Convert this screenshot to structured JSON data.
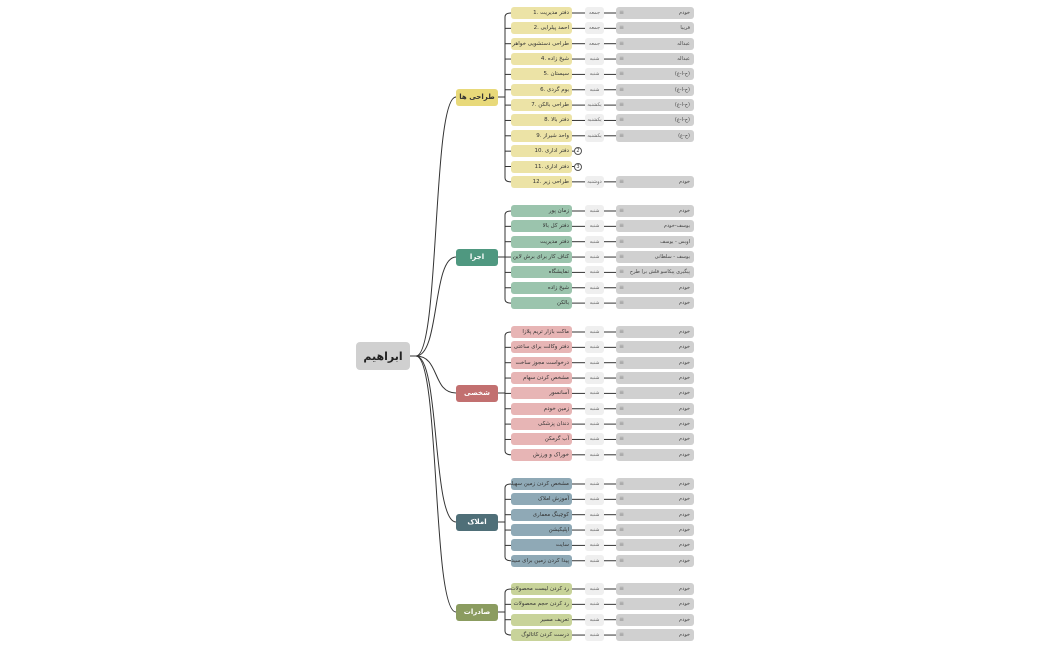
{
  "root": {
    "label": "ابراهیم",
    "color": "#d0d0d0"
  },
  "colors": {
    "line": "#333333",
    "day_pill": "#efefef",
    "assignee_pill": "#d0d0d0"
  },
  "notes_icon": "notes-lines-icon",
  "branches": [
    {
      "label": "طراحی ها",
      "color": "#e8d97a",
      "text_color": "#333333",
      "leaf_color": "#ece3a6",
      "items": [
        {
          "label": "دفتر مدیریت .1",
          "day": "جمعه",
          "assignee": "خودم"
        },
        {
          "label": "احمد پیلرایی .2",
          "day": "جمعه",
          "assignee": "فریبا"
        },
        {
          "label": "طراحی دستشویی خواهر .3",
          "day": "جمعه",
          "assignee": "عبداله"
        },
        {
          "label": "شیخ زاده .4",
          "day": "شنبه",
          "assignee": "عبداله"
        },
        {
          "label": "سیستان .5",
          "day": "شنبه",
          "assignee": "(ح-ا-ع)"
        },
        {
          "label": "بوم گردی .6",
          "day": "شنبه",
          "assignee": "(ح-ا-ع)"
        },
        {
          "label": "طراحی بالکن .7",
          "day": "یکشنبه",
          "assignee": "(ح-ا-ع)"
        },
        {
          "label": "دفتر بالا .8",
          "day": "یکشنبه",
          "assignee": "(ح-ا-ع)"
        },
        {
          "label": "واحد شیراز .9",
          "day": "یکشنبه",
          "assignee": "(ح-ع)"
        },
        {
          "label": "دفتر اداری .10",
          "collapsed_count": "2"
        },
        {
          "label": "دفتر اداری .11",
          "collapsed_count": "3"
        },
        {
          "label": "طراحی زیر .12",
          "day": "دوشنبه",
          "assignee": "خودم"
        }
      ]
    },
    {
      "label": "اجرا",
      "color": "#4f9880",
      "text_color": "#ffffff",
      "leaf_color": "#9bc4ad",
      "items": [
        {
          "label": "زمان پور",
          "day": "شنبه",
          "assignee": "خودم"
        },
        {
          "label": "دفتر کل بالا",
          "day": "شنبه",
          "assignee": "یوسف-خودم"
        },
        {
          "label": "دفتر مدیریت",
          "day": "شنبه",
          "assignee": "اویس - یوسف"
        },
        {
          "label": "کناف کار برای برش لاین",
          "day": "شنبه",
          "assignee": "یوسف - سلطانی"
        },
        {
          "label": "نمایشگاه",
          "day": "شنبه",
          "assignee": "پیگیری پیکاسو قلش برا طرح"
        },
        {
          "label": "شیخ زاده",
          "day": "شنبه",
          "assignee": "خودم"
        },
        {
          "label": "بالکن",
          "day": "شنبه",
          "assignee": "خودم"
        }
      ]
    },
    {
      "label": "شخصی",
      "color": "#c27070",
      "text_color": "#ffffff",
      "leaf_color": "#e7b5b5",
      "items": [
        {
          "label": "ماکت بازار تریم پلازا",
          "day": "شنبه",
          "assignee": "خودم"
        },
        {
          "label": "دفتر وکالت برای ساعتی",
          "day": "شنبه",
          "assignee": "خودم"
        },
        {
          "label": "درخواست مجوز ساخت",
          "day": "شنبه",
          "assignee": "خودم"
        },
        {
          "label": "مشخص کردن سهام",
          "day": "شنبه",
          "assignee": "خودم"
        },
        {
          "label": "آسانسور",
          "day": "شنبه",
          "assignee": "خودم"
        },
        {
          "label": "زمین خودم",
          "day": "شنبه",
          "assignee": "خودم"
        },
        {
          "label": "دندان پزشکی",
          "day": "شنبه",
          "assignee": "خودم"
        },
        {
          "label": "آب گرمکن",
          "day": "شنبه",
          "assignee": "خودم"
        },
        {
          "label": "خوراک و ورزش",
          "day": "شنبه",
          "assignee": "خودم"
        }
      ]
    },
    {
      "label": "املاک",
      "color": "#4f6f78",
      "text_color": "#ffffff",
      "leaf_color": "#8fa9b6",
      "items": [
        {
          "label": "مشخص کردن زمین سهیلی",
          "day": "شنبه",
          "assignee": "خودم"
        },
        {
          "label": "آموزش املاک",
          "day": "شنبه",
          "assignee": "خودم"
        },
        {
          "label": "کوچینگ معماری",
          "day": "شنبه",
          "assignee": "خودم"
        },
        {
          "label": "اپلیکیشن",
          "day": "شنبه",
          "assignee": "خودم"
        },
        {
          "label": "سایت",
          "day": "شنبه",
          "assignee": "خودم"
        },
        {
          "label": "پیدا کردن زمین برای سید",
          "day": "شنبه",
          "assignee": "خودم"
        }
      ]
    },
    {
      "label": "صادرات",
      "color": "#8b9c60",
      "text_color": "#ffffff",
      "leaf_color": "#c8d39a",
      "items": [
        {
          "label": "رد کردن لیست محصولات",
          "day": "شنبه",
          "assignee": "خودم"
        },
        {
          "label": "رد کردن حجم محصولات",
          "day": "شنبه",
          "assignee": "خودم"
        },
        {
          "label": "تعریف مسیر",
          "day": "شنبه",
          "assignee": "خودم"
        },
        {
          "label": "درست کردن کاتالوگ",
          "day": "شنبه",
          "assignee": "خودم"
        }
      ]
    }
  ]
}
